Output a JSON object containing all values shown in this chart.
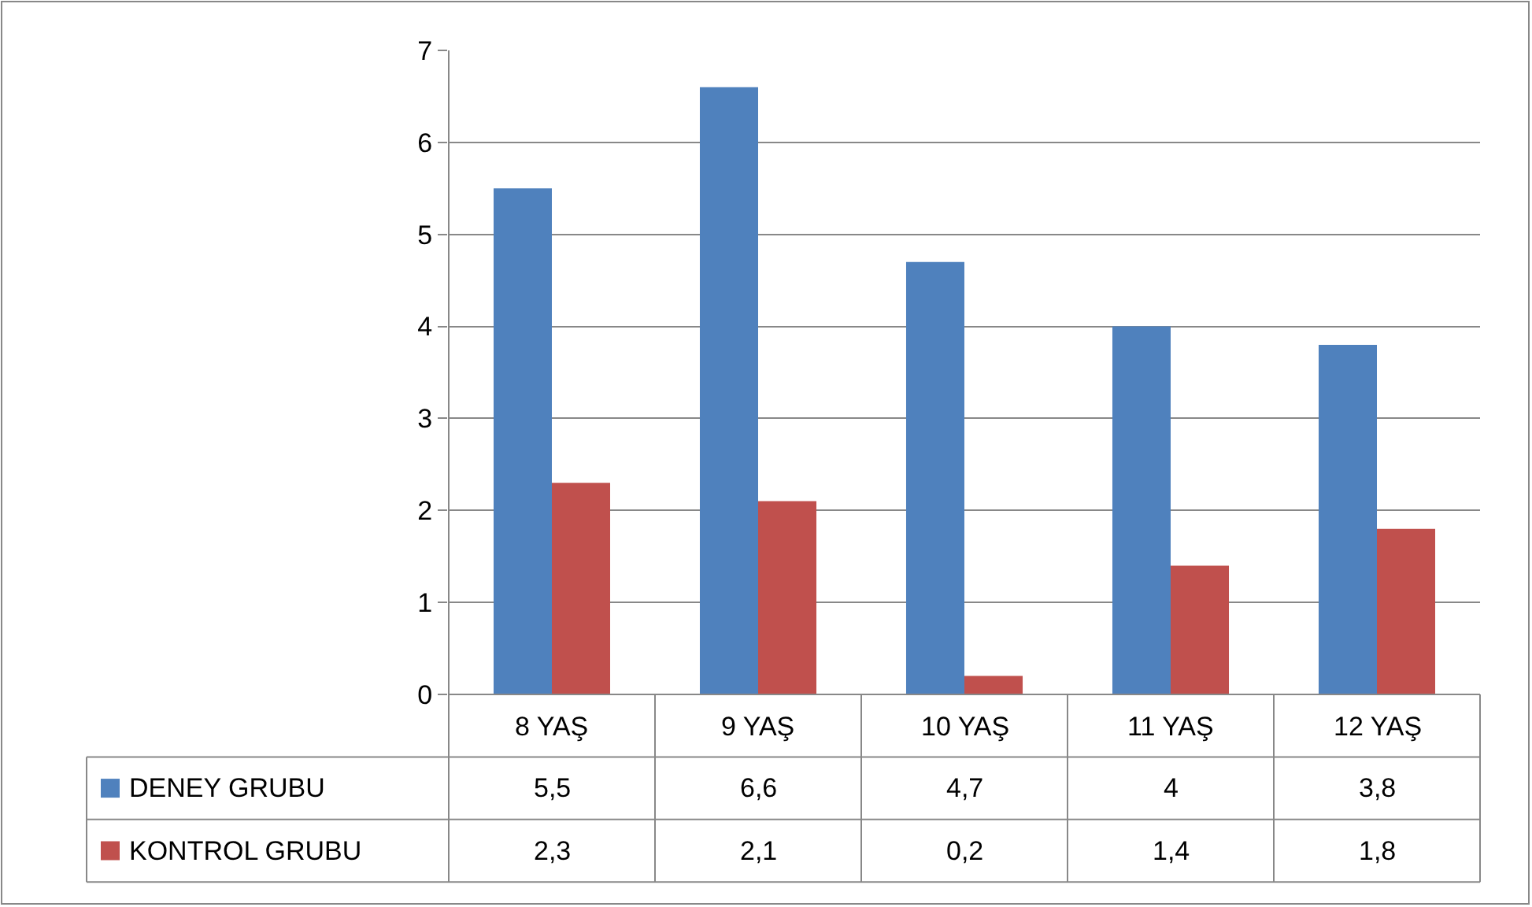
{
  "chart_data": {
    "type": "bar",
    "categories": [
      "8 YAŞ",
      "9 YAŞ",
      "10 YAŞ",
      "11 YAŞ",
      "12 YAŞ"
    ],
    "series": [
      {
        "name": "DENEY GRUBU",
        "color": "#4f81bd",
        "values": [
          5.5,
          6.6,
          4.7,
          4,
          3.8
        ],
        "value_labels": [
          "5,5",
          "6,6",
          "4,7",
          "4",
          "3,8"
        ]
      },
      {
        "name": "KONTROL GRUBU",
        "color": "#c0504d",
        "values": [
          2.3,
          2.1,
          0.2,
          1.4,
          1.8
        ],
        "value_labels": [
          "2,3",
          "2,1",
          "0,2",
          "1,4",
          "1,8"
        ]
      }
    ],
    "ylim": [
      0,
      7
    ],
    "yticks": [
      0,
      1,
      2,
      3,
      4,
      5,
      6,
      7
    ],
    "grid": "y",
    "legend": "bottom left"
  }
}
